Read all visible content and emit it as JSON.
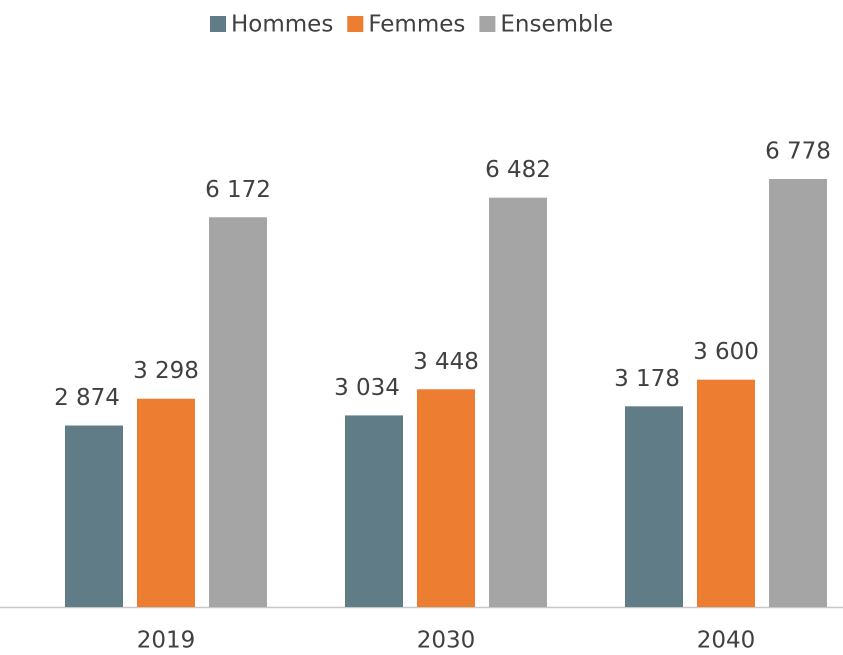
{
  "chart_data": {
    "type": "bar",
    "categories": [
      "2019",
      "2030",
      "2040"
    ],
    "series": [
      {
        "name": "Hommes",
        "color": "#607d87",
        "values": [
          2874,
          3034,
          3178
        ],
        "value_labels": [
          "2 874",
          "3 034",
          "3 178"
        ]
      },
      {
        "name": "Femmes",
        "color": "#ed7d31",
        "values": [
          3298,
          3448,
          3600
        ],
        "value_labels": [
          "3 298",
          "3 448",
          "3 600"
        ]
      },
      {
        "name": "Ensemble",
        "color": "#a5a5a5",
        "values": [
          6172,
          6482,
          6778
        ],
        "value_labels": [
          "6 172",
          "6 482",
          "6 778"
        ]
      }
    ],
    "legend": "top"
  }
}
